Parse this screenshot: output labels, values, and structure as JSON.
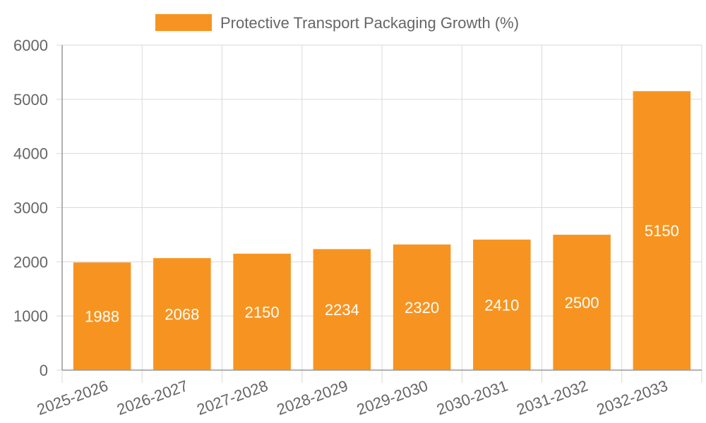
{
  "chart_data": {
    "type": "bar",
    "title": "",
    "xlabel": "",
    "ylabel": "",
    "ylim": [
      0,
      6000
    ],
    "yticks": [
      0,
      1000,
      2000,
      3000,
      4000,
      5000,
      6000
    ],
    "grid": true,
    "legend_position": "top-center",
    "categories": [
      "2025-2026",
      "2026-2027",
      "2027-2028",
      "2028-2029",
      "2029-2030",
      "2030-2031",
      "2031-2032",
      "2032-2033"
    ],
    "series": [
      {
        "name": "Protective Transport Packaging Growth (%)",
        "color": "#f79421",
        "values": [
          1988,
          2068,
          2150,
          2234,
          2320,
          2410,
          2500,
          5150
        ]
      }
    ],
    "label_color": "#ffffff",
    "grid_color": "#d9d9d9"
  }
}
